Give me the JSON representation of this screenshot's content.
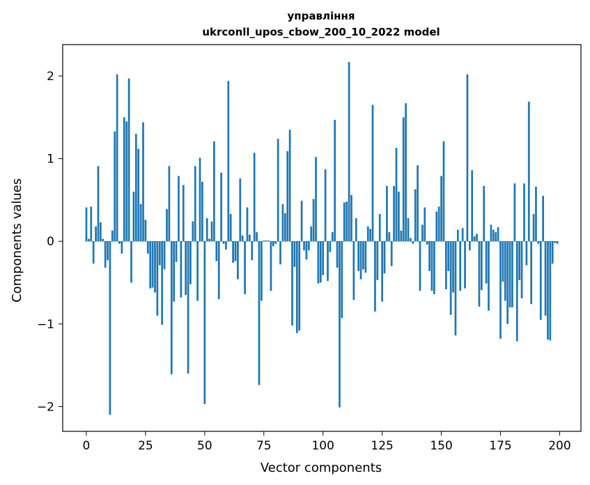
{
  "chart_data": {
    "type": "bar",
    "title_line1": "управління",
    "title_line2": "ukrconll_upos_cbow_200_10_2022 model",
    "xlabel": "Vector components",
    "ylabel": "Components values",
    "xlim": [
      -10,
      209
    ],
    "ylim": [
      -2.3,
      2.38
    ],
    "xticks": [
      0,
      25,
      50,
      75,
      100,
      125,
      150,
      175,
      200
    ],
    "yticks": [
      -2,
      -1,
      0,
      1,
      2
    ],
    "ytick_labels": [
      "−2",
      "−1",
      "0",
      "1",
      "2"
    ],
    "bar_color": "#1f77b4",
    "grid": false,
    "x": [
      0,
      1,
      2,
      3,
      4,
      5,
      6,
      7,
      8,
      9,
      10,
      11,
      12,
      13,
      14,
      15,
      16,
      17,
      18,
      19,
      20,
      21,
      22,
      23,
      24,
      25,
      26,
      27,
      28,
      29,
      30,
      31,
      32,
      33,
      34,
      35,
      36,
      37,
      38,
      39,
      40,
      41,
      42,
      43,
      44,
      45,
      46,
      47,
      48,
      49,
      50,
      51,
      52,
      53,
      54,
      55,
      56,
      57,
      58,
      59,
      60,
      61,
      62,
      63,
      64,
      65,
      66,
      67,
      68,
      69,
      70,
      71,
      72,
      73,
      74,
      75,
      76,
      77,
      78,
      79,
      80,
      81,
      82,
      83,
      84,
      85,
      86,
      87,
      88,
      89,
      90,
      91,
      92,
      93,
      94,
      95,
      96,
      97,
      98,
      99,
      100,
      101,
      102,
      103,
      104,
      105,
      106,
      107,
      108,
      109,
      110,
      111,
      112,
      113,
      114,
      115,
      116,
      117,
      118,
      119,
      120,
      121,
      122,
      123,
      124,
      125,
      126,
      127,
      128,
      129,
      130,
      131,
      132,
      133,
      134,
      135,
      136,
      137,
      138,
      139,
      140,
      141,
      142,
      143,
      144,
      145,
      146,
      147,
      148,
      149,
      150,
      151,
      152,
      153,
      154,
      155,
      156,
      157,
      158,
      159,
      160,
      161,
      162,
      163,
      164,
      165,
      166,
      167,
      168,
      169,
      170,
      171,
      172,
      173,
      174,
      175,
      176,
      177,
      178,
      179,
      180,
      181,
      182,
      183,
      184,
      185,
      186,
      187,
      188,
      189,
      190,
      191,
      192,
      193,
      194,
      195,
      196,
      197,
      198,
      199
    ],
    "values": [
      0.41,
      0.03,
      0.42,
      -0.27,
      0.18,
      0.91,
      0.23,
      0.03,
      -0.32,
      -0.23,
      -2.1,
      0.13,
      1.33,
      2.02,
      -0.03,
      -0.15,
      1.5,
      1.45,
      1.97,
      -0.5,
      0.6,
      1.3,
      1.12,
      0.45,
      1.44,
      0.26,
      -0.15,
      -0.57,
      -0.56,
      -0.62,
      -0.9,
      -0.29,
      -1.01,
      -0.34,
      0.39,
      0.91,
      -1.61,
      -0.73,
      -0.25,
      0.79,
      -0.68,
      0.68,
      -0.65,
      -1.6,
      -0.52,
      0.24,
      0.91,
      -0.72,
      1.01,
      0.72,
      -1.97,
      0.28,
      0.03,
      0.24,
      1.21,
      -0.24,
      -0.7,
      0.83,
      -0.03,
      -0.1,
      1.94,
      0.33,
      -0.26,
      -0.24,
      -0.46,
      0.76,
      0.07,
      -0.64,
      0.41,
      0.08,
      -0.23,
      1.07,
      0.11,
      -1.74,
      -0.72,
      0.01,
      0.01,
      0.01,
      -0.6,
      -0.06,
      -0.03,
      1.24,
      -0.28,
      0.45,
      0.34,
      1.09,
      1.35,
      -1.02,
      -0.31,
      -1.11,
      -1.08,
      0.49,
      -0.11,
      -0.22,
      -0.11,
      0.18,
      0.51,
      1.02,
      -0.51,
      -0.5,
      -0.41,
      0.87,
      -0.48,
      -0.13,
      0.11,
      1.47,
      -0.32,
      -2.01,
      -0.93,
      0.47,
      0.48,
      2.17,
      0.56,
      -0.71,
      0.28,
      -0.36,
      -0.46,
      -0.34,
      -0.38,
      0.18,
      0.15,
      1.65,
      -0.85,
      -0.47,
      0.33,
      -0.73,
      -0.39,
      0.67,
      0.11,
      -0.3,
      0.67,
      1.13,
      0.6,
      0.13,
      1.5,
      1.67,
      0.28,
      0.04,
      -0.03,
      0.63,
      0.92,
      -0.6,
      0.2,
      0.41,
      -0.04,
      -0.36,
      -0.6,
      -0.64,
      0.36,
      0.42,
      0.79,
      1.21,
      -0.58,
      -0.36,
      -0.89,
      -0.62,
      -1.14,
      0.14,
      -0.6,
      0.16,
      -0.57,
      2.02,
      -0.11,
      0.86,
      0.06,
      0.09,
      -0.79,
      -0.59,
      0.67,
      -0.51,
      -0.84,
      0.2,
      0.14,
      0.11,
      0.17,
      -1.18,
      -0.49,
      -0.72,
      -1.0,
      -0.8,
      -0.8,
      0.7,
      -1.21,
      -0.47,
      -0.69,
      0.7,
      -0.29,
      1.69,
      -0.76,
      0.33,
      0.66,
      -0.03,
      -0.95,
      0.55,
      -0.9,
      -1.19,
      -1.2,
      -0.27,
      -0.02,
      -0.03
    ]
  }
}
